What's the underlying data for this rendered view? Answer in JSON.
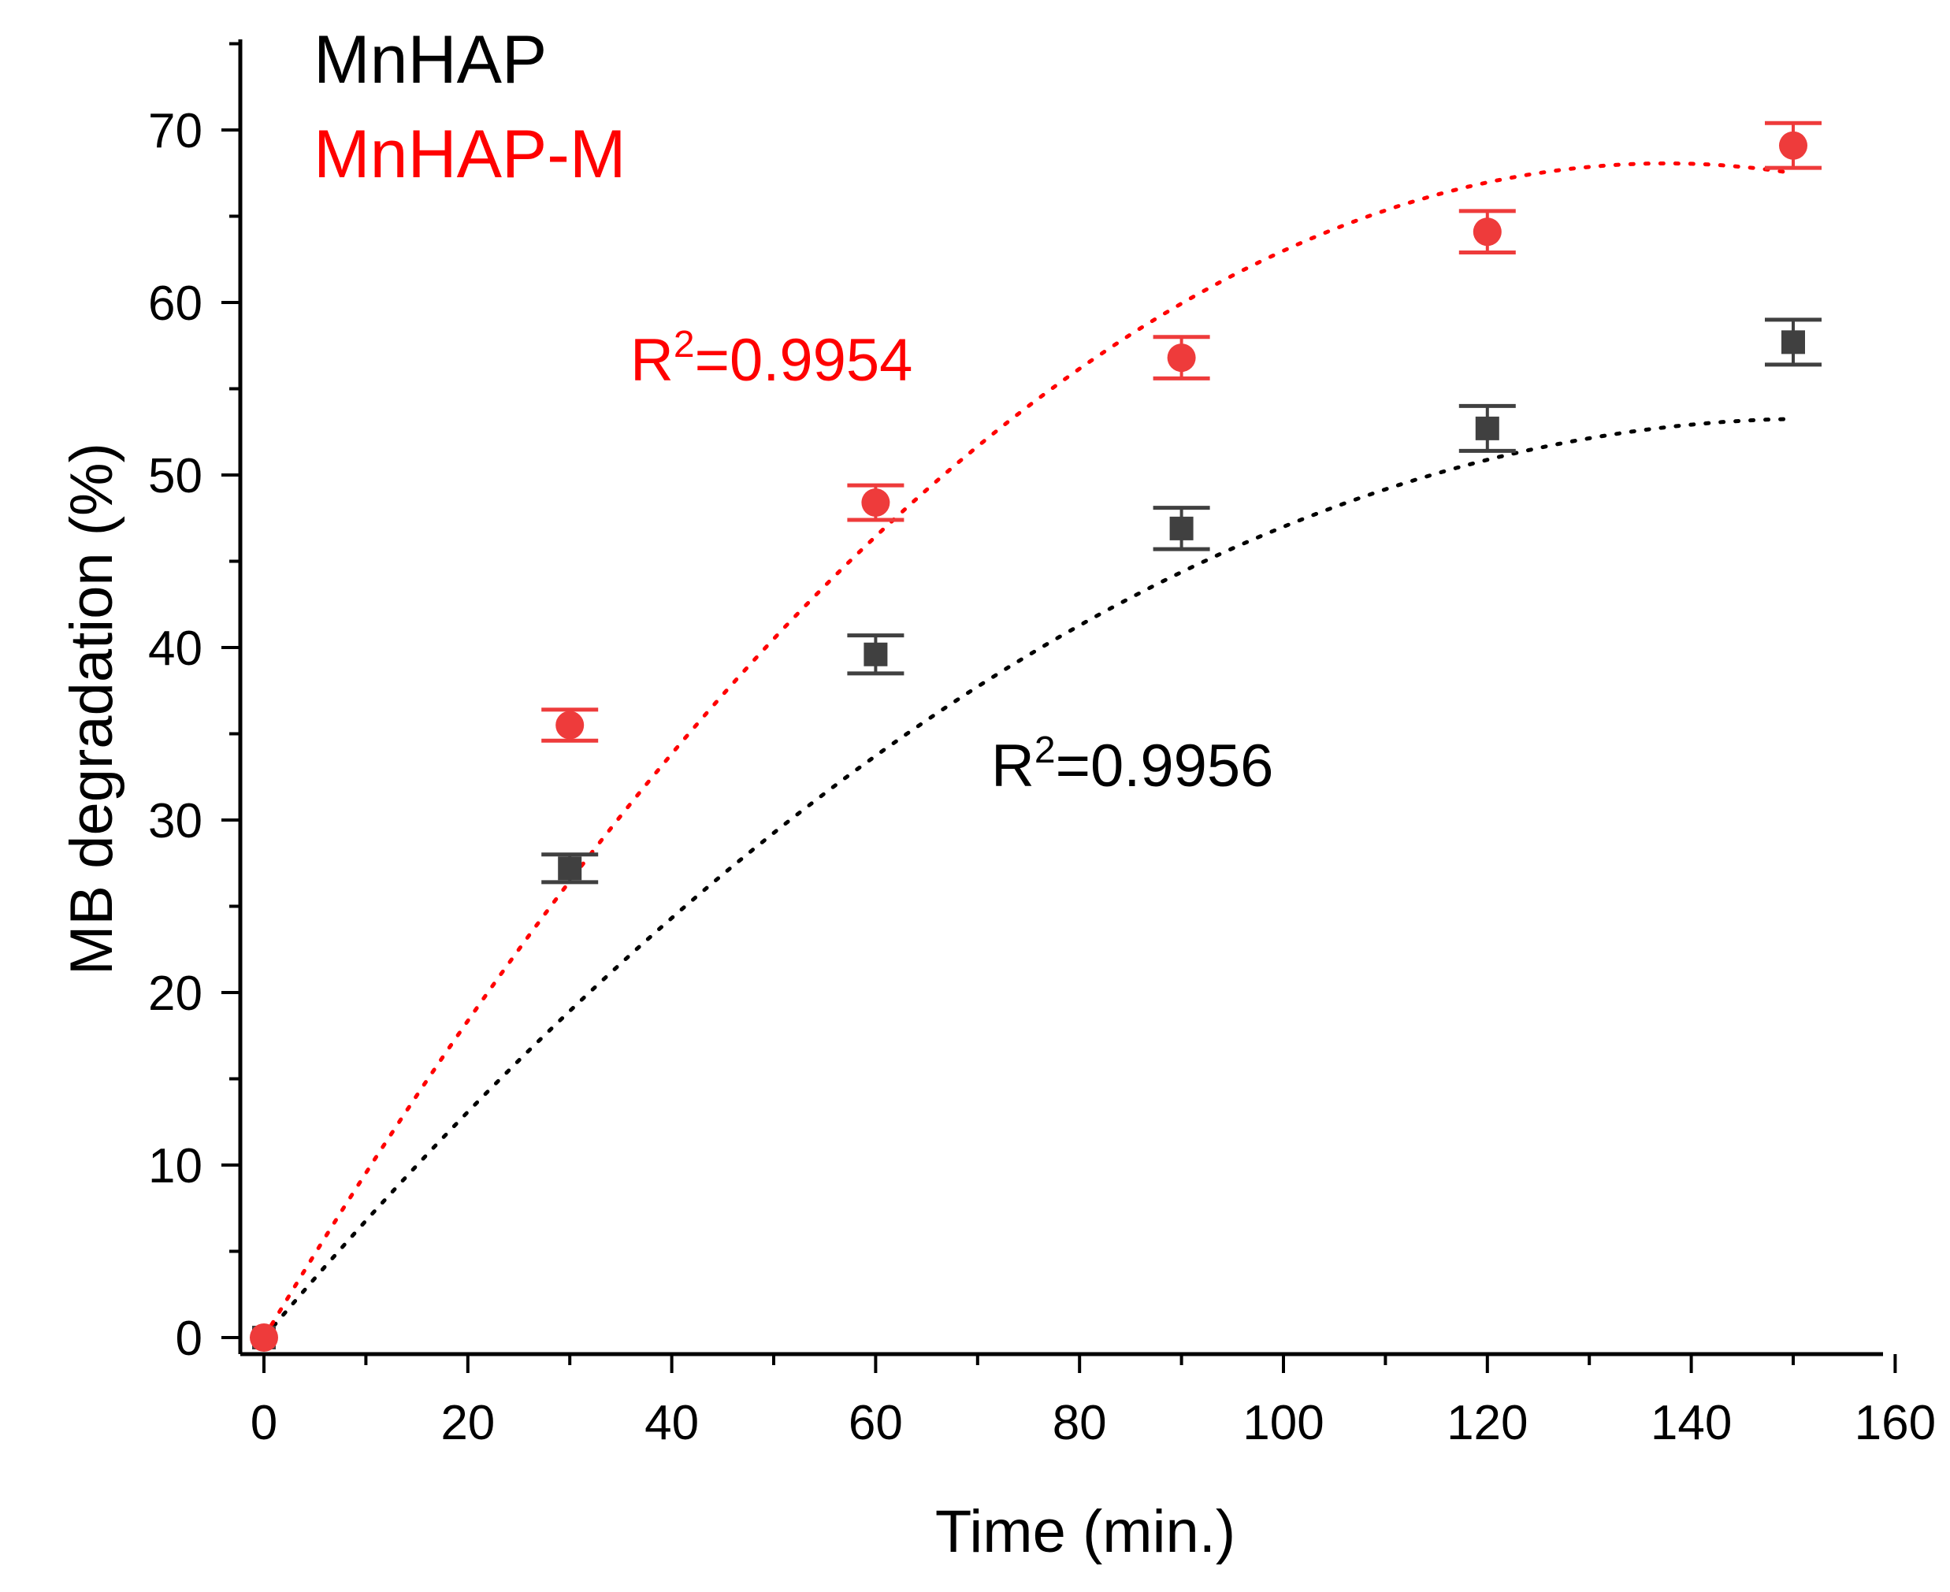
{
  "chart_data": {
    "type": "scatter",
    "xlabel": "Time (min.)",
    "ylabel": "MB degradation (%)",
    "xlim": [
      -2,
      160
    ],
    "ylim": [
      -1,
      75
    ],
    "xticks": [
      0,
      20,
      40,
      60,
      80,
      100,
      120,
      140,
      160
    ],
    "yticks": [
      0,
      10,
      20,
      30,
      40,
      50,
      60,
      70
    ],
    "grid": false,
    "legend_placement": "top-left",
    "series": [
      {
        "name": "MnHAP",
        "color": "#404040",
        "fit_color": "#000000",
        "marker": "square",
        "x": [
          0,
          30,
          60,
          90,
          120,
          150
        ],
        "y": [
          0,
          27.2,
          39.6,
          46.9,
          52.7,
          57.7
        ],
        "error": [
          0,
          0.8,
          1.1,
          1.2,
          1.3,
          1.3
        ],
        "fit": {
          "type": "polynomial",
          "coefficients": [
            0,
            0.7,
            -0.0023
          ],
          "r2_label": "R",
          "r2_sup": "2",
          "r2_value": "=0.9956"
        }
      },
      {
        "name": "MnHAP-M",
        "color": "#ee3b3b",
        "fit_color": "#ff0000",
        "marker": "circle",
        "x": [
          0,
          30,
          60,
          90,
          120,
          150
        ],
        "y": [
          0,
          35.5,
          48.4,
          56.8,
          64.1,
          69.1
        ],
        "error": [
          0,
          0.9,
          1.0,
          1.2,
          1.2,
          1.3
        ],
        "fit": {
          "type": "polynomial",
          "coefficients": [
            0,
            0.99,
            -0.0036
          ],
          "r2_label": "R",
          "r2_sup": "2",
          "r2_value": "=0.9954"
        }
      }
    ]
  }
}
